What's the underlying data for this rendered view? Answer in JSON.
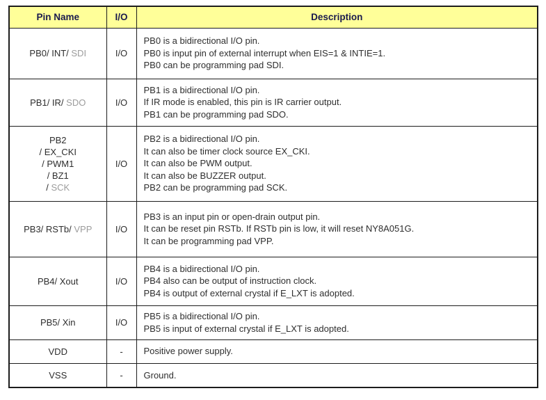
{
  "colors": {
    "header_bg": "#ffff99",
    "header_text": "#1a1a4d",
    "body_text": "#2e2e2e",
    "gray_text": "#9c9c9c",
    "border": "#1c1c1c",
    "page_bg": "#ffffff"
  },
  "table": {
    "headers": [
      {
        "key": "pin-name",
        "label": "Pin Name"
      },
      {
        "key": "io",
        "label": "I/O"
      },
      {
        "key": "description",
        "label": "Description"
      }
    ],
    "rows": [
      {
        "key": "pb0",
        "pin_lines": [
          [
            {
              "t": "PB0/ INT/ "
            },
            {
              "t": "SDI",
              "gray": true
            }
          ]
        ],
        "io": "I/O",
        "desc_lines": [
          "PB0 is a bidirectional I/O pin.",
          "PB0 is input pin of external interrupt when EIS=1 & INTIE=1.",
          "PB0 can be programming pad SDI."
        ]
      },
      {
        "key": "pb1",
        "pin_lines": [
          [
            {
              "t": "PB1/ IR/ "
            },
            {
              "t": "SDO",
              "gray": true
            }
          ]
        ],
        "io": "I/O",
        "desc_lines": [
          "PB1 is a bidirectional I/O pin.",
          "If IR mode is enabled, this pin is IR carrier output.",
          "PB1 can be programming pad SDO."
        ]
      },
      {
        "key": "pb2",
        "pin_lines": [
          [
            {
              "t": "PB2"
            }
          ],
          [
            {
              "t": "/ EX_CKI"
            }
          ],
          [
            {
              "t": "/ PWM1"
            }
          ],
          [
            {
              "t": "/ BZ1"
            }
          ],
          [
            {
              "t": "/ "
            },
            {
              "t": "SCK",
              "gray": true
            }
          ]
        ],
        "io": "I/O",
        "desc_lines": [
          "PB2 is a bidirectional I/O pin.",
          "It can also be timer clock source EX_CKI.",
          "It can also be PWM output.",
          "It can also be BUZZER output.",
          "PB2 can be programming pad SCK."
        ]
      },
      {
        "key": "pb3",
        "pin_lines": [
          [
            {
              "t": "PB3/ RSTb/ "
            },
            {
              "t": "VPP",
              "gray": true
            }
          ]
        ],
        "io": "I/O",
        "desc_lines": [
          "PB3 is an input pin or open-drain output pin.",
          "It can be reset pin RSTb. If RSTb pin is low, it will reset NY8A051G.",
          "It can be programming pad VPP."
        ]
      },
      {
        "key": "pb4",
        "pin_lines": [
          [
            {
              "t": "PB4/ Xout"
            }
          ]
        ],
        "io": "I/O",
        "desc_lines": [
          "PB4 is a bidirectional I/O pin.",
          "PB4 also can be output of instruction clock.",
          "PB4 is output of external crystal if E_LXT is adopted."
        ]
      },
      {
        "key": "pb5",
        "pin_lines": [
          [
            {
              "t": "PB5/ Xin"
            }
          ]
        ],
        "io": "I/O",
        "desc_lines": [
          "PB5 is a bidirectional I/O pin.",
          "PB5 is input of external crystal if E_LXT is adopted."
        ]
      },
      {
        "key": "vdd",
        "pin_lines": [
          [
            {
              "t": "VDD"
            }
          ]
        ],
        "io": "-",
        "desc_lines": [
          "Positive power supply."
        ]
      },
      {
        "key": "vss",
        "pin_lines": [
          [
            {
              "t": "VSS"
            }
          ]
        ],
        "io": "-",
        "desc_lines": [
          "Ground."
        ]
      }
    ]
  }
}
